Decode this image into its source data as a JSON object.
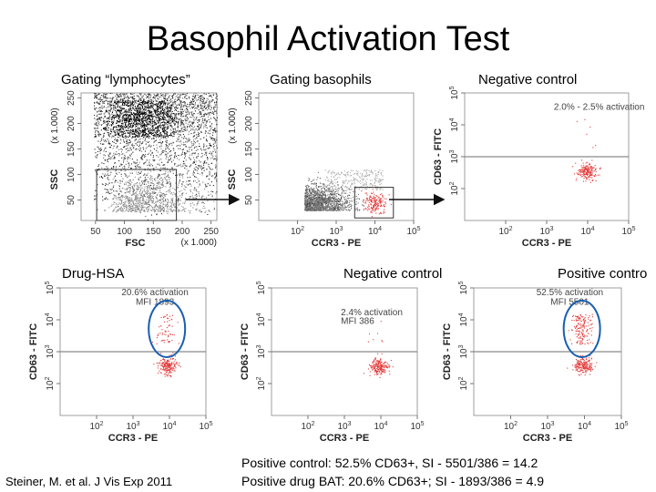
{
  "slide": {
    "title": "Basophil Activation Test",
    "citation": "Steiner, M. et al. J Vis Exp 2011",
    "summary": [
      "Positive control:  52.5% CD63+, SI - 5501/386 = 14.2",
      "Positive drug BAT: 20.6% CD63+; SI - 1893/386 = 4.9"
    ]
  },
  "colors": {
    "events_gray": "#555555",
    "events_red": "#e33b3b",
    "gate": "#333333",
    "circle": "#1a5fb0",
    "threshold": "#8a8a8a"
  },
  "chart_data": [
    {
      "id": "p1",
      "type": "scatter",
      "title": "Gating “lymphocytes”",
      "xlabel": "FSC",
      "ylabel": "SSC",
      "x_multiplier": "(x 1.000)",
      "y_multiplier": "(x 1.000)",
      "x_scale": "linear",
      "xlim": [
        25,
        260
      ],
      "x_ticks": [
        "50",
        "100",
        "150",
        "200",
        "250"
      ],
      "y_scale": "linear",
      "ylim": [
        10,
        260
      ],
      "y_ticks": [
        "50",
        "100",
        "150",
        "200",
        "250"
      ],
      "gate": {
        "x_range": [
          52,
          190
        ],
        "y_range": [
          10,
          110
        ]
      },
      "events": "dense gray cloud across full range, densest at high SSC"
    },
    {
      "id": "p2",
      "type": "scatter",
      "title": "Gating basophils",
      "xlabel": "CCR3 - PE",
      "ylabel": "SSC",
      "y_multiplier": "(x 1.000)",
      "x_scale": "log",
      "xlim": [
        10,
        100000
      ],
      "x_ticks": [
        "10^2",
        "10^3",
        "10^4",
        "10^5"
      ],
      "y_scale": "linear",
      "ylim": [
        10,
        260
      ],
      "y_ticks": [
        "50",
        "100",
        "150",
        "200",
        "250"
      ],
      "gate": {
        "x_range": [
          3000,
          30000
        ],
        "y_range": [
          15,
          75
        ]
      },
      "events": "gray population low CCR3; red basophil population ~10^4 CCR3, low SSC"
    },
    {
      "id": "p3",
      "type": "scatter",
      "title": "Negative control",
      "xlabel": "CCR3 - PE",
      "ylabel": "CD63 - FITC",
      "x_scale": "log",
      "xlim": [
        10,
        100000
      ],
      "x_ticks": [
        "10^2",
        "10^3",
        "10^4",
        "10^5"
      ],
      "y_scale": "log",
      "ylim": [
        10,
        100000
      ],
      "y_ticks": [
        "10^2",
        "10^3",
        "10^4",
        "10^5"
      ],
      "threshold_cd63": 1000,
      "annotation": "2.0% - 2.5% activation"
    },
    {
      "id": "p4",
      "type": "scatter",
      "title": "Drug-HSA",
      "xlabel": "CCR3 - PE",
      "ylabel": "CD63 - FITC",
      "x_scale": "log",
      "xlim": [
        10,
        100000
      ],
      "x_ticks": [
        "10^2",
        "10^3",
        "10^4",
        "10^5"
      ],
      "y_scale": "log",
      "ylim": [
        10,
        100000
      ],
      "y_ticks": [
        "10^2",
        "10^3",
        "10^4",
        "10^5"
      ],
      "threshold_cd63": 1000,
      "annotation": "20.6% activation",
      "mfi": "MFI 1893",
      "percent_cd63_positive": 20.6
    },
    {
      "id": "p5",
      "type": "scatter",
      "title": "Negative control",
      "xlabel": "CCR3 - PE",
      "ylabel": "CD63 - FITC",
      "x_scale": "log",
      "xlim": [
        10,
        100000
      ],
      "x_ticks": [
        "10^2",
        "10^3",
        "10^4",
        "10^5"
      ],
      "y_scale": "log",
      "ylim": [
        10,
        100000
      ],
      "y_ticks": [
        "10^2",
        "10^3",
        "10^4",
        "10^5"
      ],
      "threshold_cd63": 1000,
      "annotation": "2.4% activation",
      "mfi": "MFI 386",
      "percent_cd63_positive": 2.4
    },
    {
      "id": "p6",
      "type": "scatter",
      "title": "Positive contro",
      "xlabel": "CCR3 - PE",
      "ylabel": "CD63 - FITC",
      "x_scale": "log",
      "xlim": [
        10,
        100000
      ],
      "x_ticks": [
        "10^2",
        "10^3",
        "10^4",
        "10^5"
      ],
      "y_scale": "log",
      "ylim": [
        10,
        100000
      ],
      "y_ticks": [
        "10^2",
        "10^3",
        "10^4",
        "10^5"
      ],
      "threshold_cd63": 1000,
      "annotation": "52.5% activation",
      "mfi": "MFI 5501",
      "percent_cd63_positive": 52.5
    }
  ]
}
